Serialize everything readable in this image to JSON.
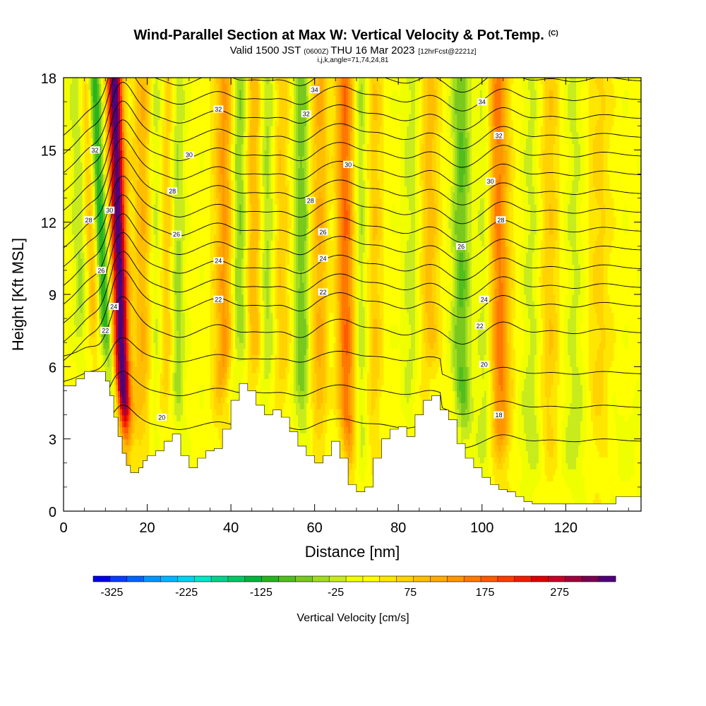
{
  "chart_data": {
    "type": "heatmap",
    "title": "Wind-Parallel Section at Max W: Vertical Velocity & Pot.Temp.",
    "title_mark": "(C)",
    "subtitle_prefix": "Valid 1500 JST",
    "subtitle_utc": "(0600Z)",
    "subtitle_main": "THU 16 Mar 2023",
    "subtitle_fcst": "[12hrFcst@2221z]",
    "subtitle_params": "i,j,k,angle=71,74,24,81",
    "xlabel": "Distance [nm]",
    "ylabel": "Height [Kft MSL]",
    "xlim": [
      0,
      138
    ],
    "ylim": [
      0,
      18
    ],
    "x_ticks": [
      "0",
      "20",
      "40",
      "60",
      "80",
      "100",
      "120"
    ],
    "x_tick_values": [
      0,
      20,
      40,
      60,
      80,
      100,
      120
    ],
    "y_ticks": [
      "0",
      "3",
      "6",
      "9",
      "12",
      "15",
      "18"
    ],
    "y_tick_values": [
      0,
      3,
      6,
      9,
      12,
      15,
      18
    ],
    "colorbar": {
      "label": "Vertical Velocity [cm/s]",
      "tick_labels": [
        "-325",
        "-225",
        "-125",
        "-25",
        "75",
        "175",
        "275"
      ],
      "tick_values": [
        -325,
        -225,
        -125,
        -25,
        75,
        175,
        275
      ],
      "range": [
        -350,
        350
      ],
      "colors": [
        "#0000e6",
        "#0a3cff",
        "#0064ff",
        "#0096ff",
        "#00b4ff",
        "#00d2f0",
        "#00e6c8",
        "#00d28c",
        "#00c864",
        "#00b43c",
        "#28b41e",
        "#50be1e",
        "#78c81e",
        "#a0dc1e",
        "#c8eb1e",
        "#f0ff00",
        "#ffff00",
        "#ffe600",
        "#ffd200",
        "#ffbe00",
        "#ffaa00",
        "#ff9600",
        "#ff7800",
        "#ff5a00",
        "#ff3c00",
        "#f01e00",
        "#dc0000",
        "#c80028",
        "#a0003c",
        "#780050",
        "#500078"
      ]
    },
    "terrain": {
      "x": [
        0,
        3,
        5,
        8,
        10,
        11,
        12,
        13,
        14,
        15,
        16,
        17,
        18,
        19,
        20,
        22,
        24,
        26,
        28,
        30,
        32,
        34,
        36,
        38,
        40,
        42,
        44,
        46,
        48,
        50,
        52,
        54,
        56,
        58,
        60,
        62,
        64,
        66,
        68,
        70,
        72,
        74,
        76,
        78,
        80,
        82,
        84,
        86,
        88,
        90,
        92,
        94,
        96,
        98,
        100,
        102,
        104,
        106,
        108,
        110,
        112,
        114,
        116,
        118,
        120,
        124,
        128,
        132,
        134,
        136,
        138
      ],
      "y": [
        5.2,
        5.5,
        5.8,
        5.8,
        5.4,
        4.8,
        3.9,
        3.1,
        2.4,
        1.9,
        1.6,
        1.6,
        1.8,
        2.1,
        2.3,
        2.5,
        2.9,
        3.2,
        2.3,
        1.8,
        2.2,
        2.5,
        2.6,
        3.4,
        4.6,
        5.3,
        5.0,
        4.4,
        4.0,
        4.2,
        3.9,
        3.3,
        2.7,
        2.3,
        2.0,
        2.3,
        2.9,
        2.2,
        1.1,
        0.8,
        1.0,
        2.2,
        3.0,
        3.4,
        3.5,
        3.1,
        4.0,
        4.6,
        4.8,
        4.2,
        3.8,
        2.8,
        2.2,
        1.8,
        1.4,
        1.1,
        0.9,
        0.8,
        0.6,
        0.4,
        0.3,
        0.3,
        0.3,
        0.3,
        0.3,
        0.3,
        0.3,
        0.6,
        0.6,
        0.6,
        0.6
      ]
    },
    "updrafts": [
      {
        "x": 13.5,
        "peak": 330,
        "width": 1.8,
        "tilt": -0.15
      },
      {
        "x": 7.0,
        "peak": 90,
        "width": 2.0,
        "tilt": -0.2
      },
      {
        "x": 19.0,
        "peak": 80,
        "width": 2.4,
        "tilt": 0.0
      },
      {
        "x": 25.0,
        "peak": 70,
        "width": 2.2,
        "tilt": 0.05
      },
      {
        "x": 38.5,
        "peak": 110,
        "width": 2.4,
        "tilt": 0.0
      },
      {
        "x": 45.5,
        "peak": 90,
        "width": 2.2,
        "tilt": 0.0
      },
      {
        "x": 52.0,
        "peak": 60,
        "width": 2.0,
        "tilt": 0.0
      },
      {
        "x": 61.5,
        "peak": 90,
        "width": 2.6,
        "tilt": 0.0
      },
      {
        "x": 67.5,
        "peak": 150,
        "width": 2.6,
        "tilt": -0.05
      },
      {
        "x": 74.0,
        "peak": 60,
        "width": 2.2,
        "tilt": 0.0
      },
      {
        "x": 87.5,
        "peak": 70,
        "width": 2.2,
        "tilt": 0.0
      },
      {
        "x": 104.0,
        "peak": 140,
        "width": 2.6,
        "tilt": -0.05
      },
      {
        "x": 116.0,
        "peak": 55,
        "width": 2.6,
        "tilt": 0.0
      },
      {
        "x": 128.0,
        "peak": 45,
        "width": 2.6,
        "tilt": 0.0
      }
    ],
    "downdrafts": [
      {
        "x": 9.5,
        "peak": -160,
        "width": 1.5,
        "tilt": -0.25
      },
      {
        "x": 4.5,
        "peak": -70,
        "width": 2.0,
        "tilt": -0.1
      },
      {
        "x": 22.0,
        "peak": -55,
        "width": 1.8,
        "tilt": 0.0
      },
      {
        "x": 27.0,
        "peak": -85,
        "width": 1.8,
        "tilt": 0.0
      },
      {
        "x": 42.0,
        "peak": -95,
        "width": 2.0,
        "tilt": 0.0
      },
      {
        "x": 48.5,
        "peak": -70,
        "width": 2.0,
        "tilt": 0.0
      },
      {
        "x": 57.0,
        "peak": -95,
        "width": 2.0,
        "tilt": 0.0
      },
      {
        "x": 64.0,
        "peak": -45,
        "width": 2.0,
        "tilt": 0.0
      },
      {
        "x": 71.0,
        "peak": -75,
        "width": 2.0,
        "tilt": 0.0
      },
      {
        "x": 83.0,
        "peak": -40,
        "width": 2.2,
        "tilt": 0.0
      },
      {
        "x": 95.0,
        "peak": -100,
        "width": 2.2,
        "tilt": 0.0
      },
      {
        "x": 101.0,
        "peak": -55,
        "width": 2.0,
        "tilt": 0.0
      },
      {
        "x": 112.0,
        "peak": -40,
        "width": 2.4,
        "tilt": 0.0
      },
      {
        "x": 122.0,
        "peak": -35,
        "width": 2.4,
        "tilt": 0.0
      }
    ],
    "theta_levels": [
      18,
      19,
      20,
      21,
      22,
      23,
      24,
      25,
      26,
      27,
      28,
      29,
      30,
      31,
      32,
      33,
      34
    ],
    "theta_labels": [
      {
        "text": "34",
        "x": 60,
        "y": 17.5
      },
      {
        "text": "34",
        "x": 100,
        "y": 17.0
      },
      {
        "text": "32",
        "x": 37,
        "y": 16.7
      },
      {
        "text": "32",
        "x": 58,
        "y": 16.5
      },
      {
        "text": "32",
        "x": 104,
        "y": 15.6
      },
      {
        "text": "32",
        "x": 7.5,
        "y": 15.0
      },
      {
        "text": "30",
        "x": 30,
        "y": 14.8
      },
      {
        "text": "30",
        "x": 68,
        "y": 14.4
      },
      {
        "text": "30",
        "x": 102,
        "y": 13.7
      },
      {
        "text": "30",
        "x": 11,
        "y": 12.5
      },
      {
        "text": "28",
        "x": 26,
        "y": 13.3
      },
      {
        "text": "28",
        "x": 59,
        "y": 12.9
      },
      {
        "text": "28",
        "x": 104.5,
        "y": 12.1
      },
      {
        "text": "28",
        "x": 6,
        "y": 12.1
      },
      {
        "text": "26",
        "x": 27,
        "y": 11.5
      },
      {
        "text": "26",
        "x": 62,
        "y": 11.6
      },
      {
        "text": "26",
        "x": 95,
        "y": 11.0
      },
      {
        "text": "26",
        "x": 9,
        "y": 10.0
      },
      {
        "text": "24",
        "x": 37,
        "y": 10.4
      },
      {
        "text": "24",
        "x": 62,
        "y": 10.5
      },
      {
        "text": "24",
        "x": 100.5,
        "y": 8.8
      },
      {
        "text": "24",
        "x": 12,
        "y": 8.5
      },
      {
        "text": "22",
        "x": 37,
        "y": 8.8
      },
      {
        "text": "22",
        "x": 62,
        "y": 9.1
      },
      {
        "text": "22",
        "x": 99.5,
        "y": 7.7
      },
      {
        "text": "22",
        "x": 10,
        "y": 7.5
      },
      {
        "text": "20",
        "x": 100.5,
        "y": 6.1
      },
      {
        "text": "20",
        "x": 23.5,
        "y": 3.9
      },
      {
        "text": "18",
        "x": 104,
        "y": 4.0
      }
    ]
  }
}
